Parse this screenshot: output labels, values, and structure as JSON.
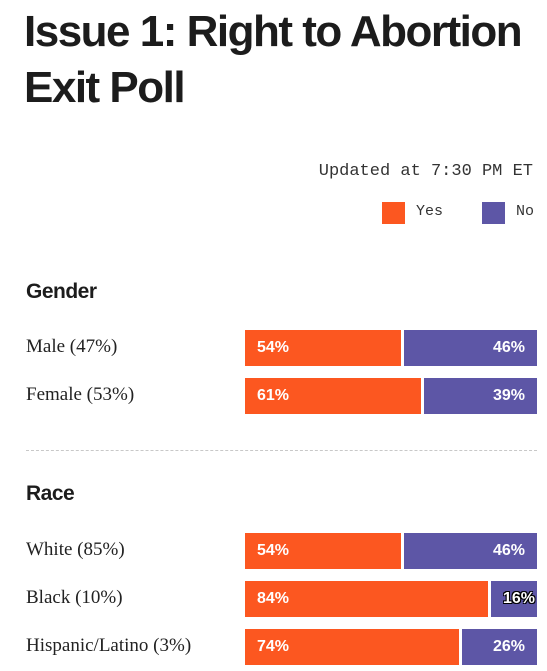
{
  "title": "Issue 1: Right to Abortion Exit Poll",
  "updated": "Updated at 7:30 PM ET",
  "colors": {
    "yes": "#fc5720",
    "no": "#5d56a6",
    "gap": "#ffffff"
  },
  "legend": [
    {
      "label": "Yes",
      "color": "#fc5720"
    },
    {
      "label": "No",
      "color": "#5d56a6"
    }
  ],
  "chart_data": {
    "type": "bar",
    "orientation": "horizontal",
    "stacked": true,
    "title": "Issue 1: Right to Abortion Exit Poll",
    "series_names": [
      "Yes",
      "No"
    ],
    "groups": [
      {
        "name": "Gender",
        "rows": [
          {
            "label": "Male (47%)",
            "yes": 54,
            "no": 46
          },
          {
            "label": "Female (53%)",
            "yes": 61,
            "no": 39
          }
        ]
      },
      {
        "name": "Race",
        "rows": [
          {
            "label": "White (85%)",
            "yes": 54,
            "no": 46
          },
          {
            "label": "Black (10%)",
            "yes": 84,
            "no": 16
          },
          {
            "label": "Hispanic/Latino (3%)",
            "yes": 74,
            "no": 26
          }
        ]
      }
    ]
  }
}
